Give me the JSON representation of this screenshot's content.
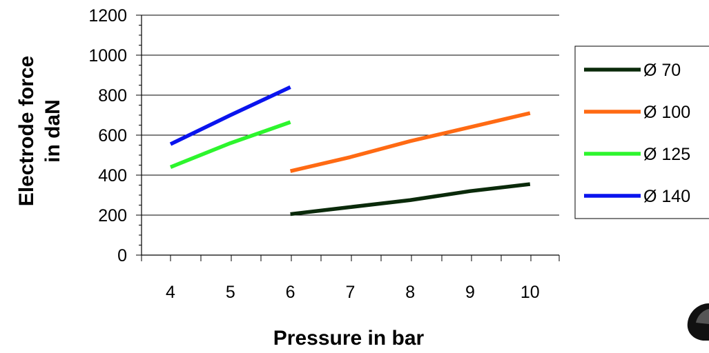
{
  "chart_data": {
    "type": "line",
    "title": "",
    "xlabel": "Pressure in bar",
    "ylabel": [
      "Electrode force",
      "in daN"
    ],
    "categories": [
      "4",
      "5",
      "6",
      "7",
      "8",
      "9",
      "10"
    ],
    "ylim": [
      0,
      1200
    ],
    "yticks": [
      "0",
      "200",
      "400",
      "600",
      "800",
      "1000",
      "1200"
    ],
    "grid": "horizontal",
    "legend_position": "right",
    "series": [
      {
        "name": "Ø   70",
        "color": "#0a2a0a",
        "x": [
          6,
          7,
          8,
          9,
          10
        ],
        "values": [
          205,
          240,
          275,
          320,
          355
        ]
      },
      {
        "name": "Ø 100",
        "color": "#ff6a13",
        "x": [
          6,
          7,
          8,
          9,
          10
        ],
        "values": [
          420,
          490,
          570,
          640,
          710
        ]
      },
      {
        "name": "Ø 125",
        "color": "#2df52d",
        "x": [
          4,
          5,
          6
        ],
        "values": [
          440,
          560,
          665
        ]
      },
      {
        "name": "Ø 140",
        "color": "#0a14ee",
        "x": [
          4,
          5,
          6
        ],
        "values": [
          555,
          700,
          840
        ]
      }
    ]
  }
}
